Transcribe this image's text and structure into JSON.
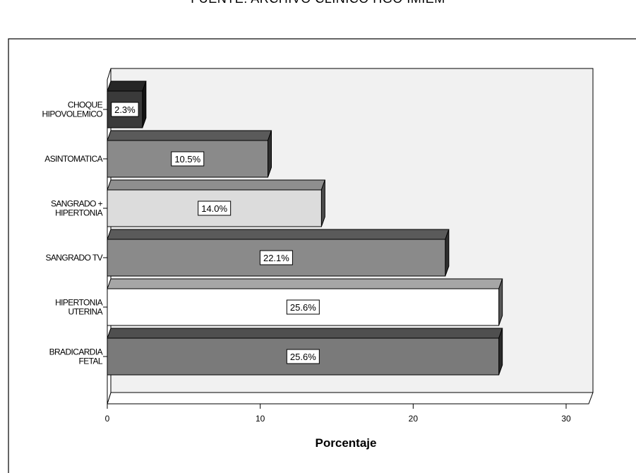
{
  "source_caption": "FUENTE: ARCHIVO CLINICO HGO IMIEM",
  "chart_data": {
    "type": "bar",
    "orientation": "horizontal",
    "style": "3d",
    "categories": [
      [
        "CHOQUE",
        "HIPOVOLEMICO"
      ],
      [
        "ASINTOMATICA"
      ],
      [
        "SANGRADO +",
        "HIPERTONIA"
      ],
      [
        "SANGRADO TV"
      ],
      [
        "HIPERTONIA",
        "UTERINA"
      ],
      [
        "BRADICARDIA",
        "FETAL"
      ]
    ],
    "values": [
      2.3,
      10.5,
      14.0,
      22.1,
      25.6,
      25.6
    ],
    "data_labels": [
      "2.3%",
      "10.5%",
      "14.0%",
      "22.1%",
      "25.6%",
      "25.6%"
    ],
    "bar_colors": [
      "#3a3a3a",
      "#8a8a8a",
      "#dcdcdc",
      "#8a8a8a",
      "#ffffff",
      "#7a7a7a"
    ],
    "xlabel": "Porcentaje",
    "ylabel": "",
    "xlim": [
      0,
      30
    ],
    "xticks": [
      0,
      10,
      20,
      30
    ],
    "grid": false,
    "legend": "none"
  }
}
